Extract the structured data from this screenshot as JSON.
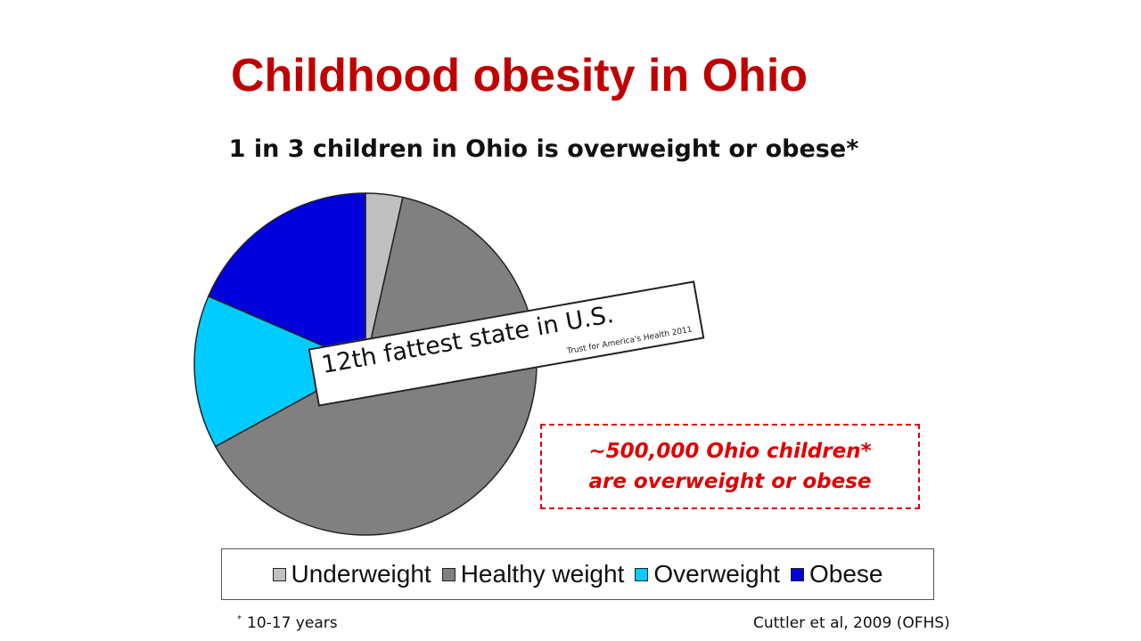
{
  "slide": {
    "title": "Childhood obesity in Ohio",
    "subtitle": "1 in 3 children in Ohio is overweight or obese*"
  },
  "chart_data": {
    "type": "pie",
    "start": "12 o'clock, clockwise",
    "categories": [
      "Underweight",
      "Healthy weight",
      "Overweight",
      "Obese"
    ],
    "values": [
      3.5,
      63.5,
      14.5,
      18.5
    ],
    "unit": "percent (estimated)",
    "colors": [
      "#c0c0c0",
      "#808080",
      "#00ccff",
      "#0000dd"
    ],
    "legend": {
      "placement": "bottom",
      "entries": [
        "Underweight",
        "Healthy weight",
        "Overweight",
        "Obese"
      ]
    }
  },
  "annotation": {
    "text": "12th fattest state in U.S.",
    "source": "Trust for America's Health 2011"
  },
  "callout": {
    "line1": "~500,000 Ohio children*",
    "line2": "are overweight or obese",
    "color": "#e00000"
  },
  "footnote": {
    "marker": "*",
    "text": "10-17 years"
  },
  "source": "Cuttler et al, 2009 (OFHS)"
}
